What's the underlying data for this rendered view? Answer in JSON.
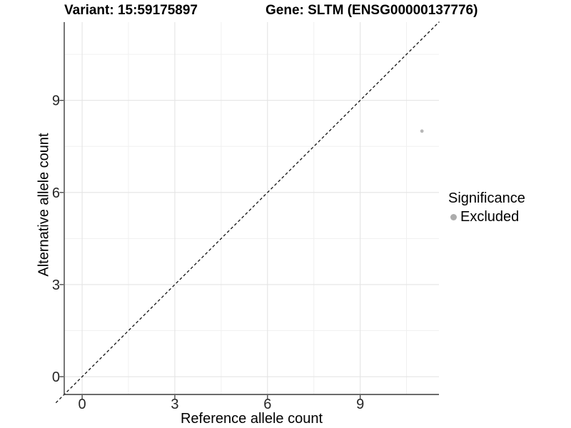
{
  "header": {
    "variant_title": "Variant: 15:59175897",
    "gene_title": "Gene: SLTM (ENSG00000137776)"
  },
  "chart_data": {
    "type": "scatter",
    "xlabel": "Reference allele count",
    "ylabel": "Alternative allele count",
    "xlim": [
      -0.58,
      11.55
    ],
    "ylim": [
      -0.58,
      11.55
    ],
    "x_major_ticks": [
      0,
      3,
      6,
      9
    ],
    "x_tick_labels": [
      "0",
      "3",
      "6",
      "9"
    ],
    "y_major_ticks": [
      0,
      3,
      6,
      9
    ],
    "y_tick_labels": [
      "0",
      "3",
      "6",
      "9"
    ],
    "x_minor_ticks": [
      1.5,
      4.5,
      7.5,
      10.5
    ],
    "y_minor_ticks": [
      1.5,
      4.5,
      7.5,
      10.5
    ],
    "grid": true,
    "series": [
      {
        "name": "Excluded",
        "color": "#b7b7b7",
        "points": [
          {
            "x": 11,
            "y": 8
          }
        ]
      }
    ],
    "reference_line": {
      "type": "identity",
      "slope": 1,
      "intercept": 0,
      "style": "dashed",
      "color": "#111111"
    },
    "colors": {
      "axis_line": "#3c3c3c",
      "tick_mark": "#3c3c3c",
      "tick_label": "#262626",
      "grid_major": "#e4e4e4",
      "grid_minor": "#f0f0f0",
      "background": "#ffffff"
    },
    "legend_position": "right"
  },
  "legend": {
    "title": "Significance",
    "items": [
      {
        "label": "Excluded",
        "color": "#acacac"
      }
    ]
  }
}
